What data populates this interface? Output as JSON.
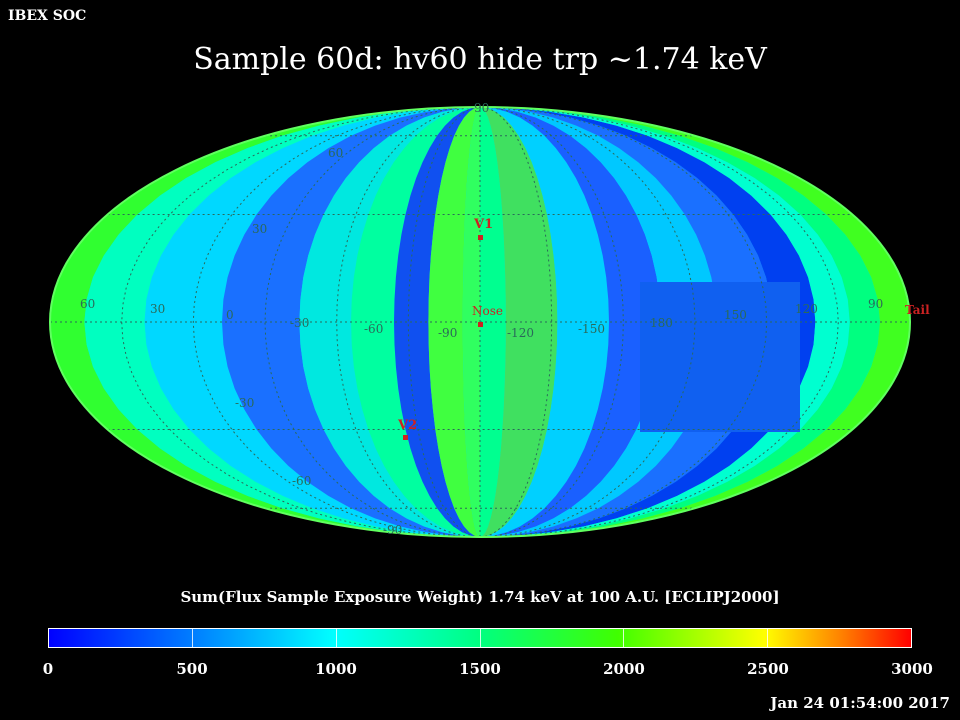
{
  "header": {
    "corner_label": "IBEX SOC",
    "title": "Sample 60d: hv60 hide trp ~1.74 keV"
  },
  "map": {
    "projection": "aitoff",
    "lat_labels": [
      "90",
      "60",
      "30",
      "-30",
      "-60",
      "-90"
    ],
    "lon_labels": [
      "60",
      "30",
      "0",
      "-30",
      "-60",
      "-90",
      "-120",
      "-150",
      "180",
      "150",
      "120",
      "90"
    ],
    "markers": [
      {
        "name": "V1",
        "color": "#cc2222"
      },
      {
        "name": "Nose",
        "color": "#cc2222"
      },
      {
        "name": "V2",
        "color": "#cc2222"
      },
      {
        "name": "Tail",
        "color": "#cc2222"
      }
    ]
  },
  "colorbar": {
    "title": "Sum(Flux Sample Exposure Weight)  1.74 keV at 100 A.U. [ECLIPJ2000]",
    "ticks": [
      "0",
      "500",
      "1000",
      "1500",
      "2000",
      "2500",
      "3000"
    ],
    "range": [
      0,
      3000
    ]
  },
  "footer": {
    "timestamp": "Jan 24 01:54:00 2017"
  }
}
